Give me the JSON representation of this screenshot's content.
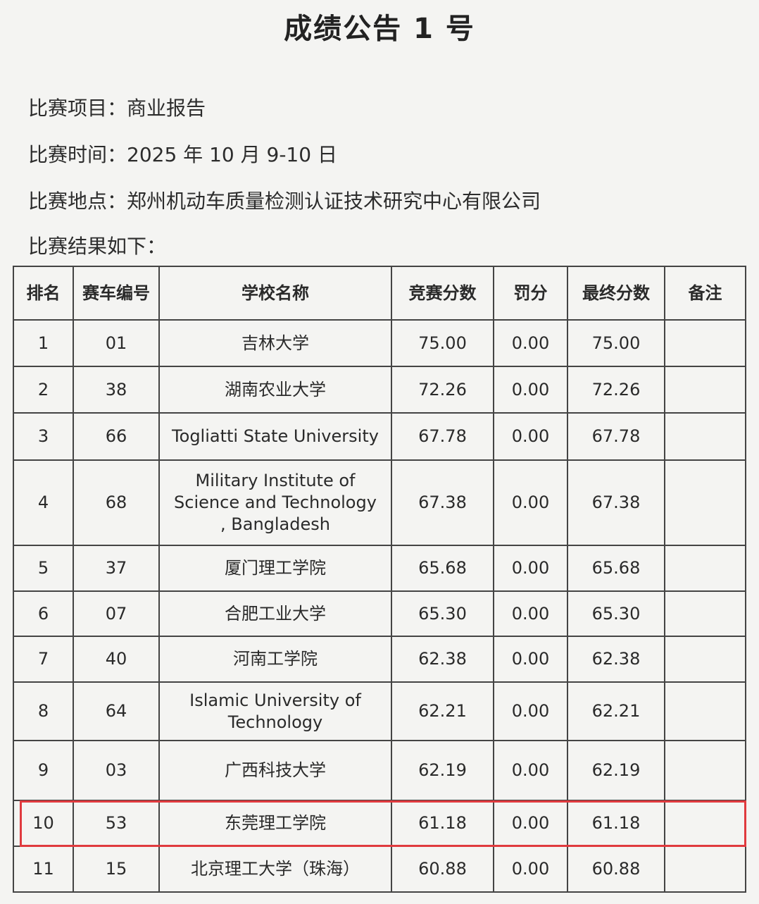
{
  "title": "成绩公告 1 号",
  "info": [
    {
      "label": "比赛项目：",
      "value": "商业报告"
    },
    {
      "label": "比赛时间：",
      "value": "2025 年 10 月 9-10 日"
    },
    {
      "label": "比赛地点：",
      "value": "郑州机动车质量检测认证技术研究中心有限公司"
    },
    {
      "label": "比赛结果如下：",
      "value": ""
    }
  ],
  "table": {
    "headers": [
      "排名",
      "赛车编号",
      "学校名称",
      "竞赛分数",
      "罚分",
      "最终分数",
      "备注"
    ],
    "rows": [
      [
        "1",
        "01",
        "吉林大学",
        "75.00",
        "0.00",
        "75.00",
        ""
      ],
      [
        "2",
        "38",
        "湖南农业大学",
        "72.26",
        "0.00",
        "72.26",
        ""
      ],
      [
        "3",
        "66",
        "Togliatti State University",
        "67.78",
        "0.00",
        "67.78",
        ""
      ],
      [
        "4",
        "68",
        "Military Institute of Science and Technology , Bangladesh",
        "67.38",
        "0.00",
        "67.38",
        ""
      ],
      [
        "5",
        "37",
        "厦门理工学院",
        "65.68",
        "0.00",
        "65.68",
        ""
      ],
      [
        "6",
        "07",
        "合肥工业大学",
        "65.30",
        "0.00",
        "65.30",
        ""
      ],
      [
        "7",
        "40",
        "河南工学院",
        "62.38",
        "0.00",
        "62.38",
        ""
      ],
      [
        "8",
        "64",
        "Islamic University of Technology",
        "62.21",
        "0.00",
        "62.21",
        ""
      ],
      [
        "9",
        "03",
        "广西科技大学",
        "62.19",
        "0.00",
        "62.19",
        ""
      ],
      [
        "10",
        "53",
        "东莞理工学院",
        "61.18",
        "0.00",
        "61.18",
        ""
      ],
      [
        "11",
        "15",
        "北京理工大学（珠海）",
        "60.88",
        "0.00",
        "60.88",
        ""
      ]
    ],
    "highlighted_row": 10,
    "highlight_color": "#e03a3e"
  }
}
